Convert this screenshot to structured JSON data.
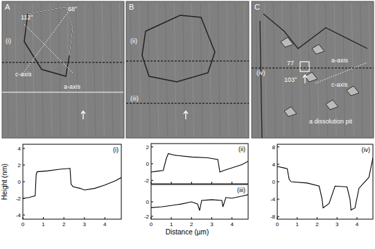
{
  "figure": {
    "y_label": "Height (nm)",
    "x_label": "Distance (µm)"
  },
  "images": [
    {
      "label": "A",
      "annotations": [
        "(i)",
        "112°",
        "68°",
        "c-axis",
        "a-axis"
      ]
    },
    {
      "label": "B",
      "annotations": [
        "(ii)",
        "(iii)"
      ]
    },
    {
      "label": "C",
      "annotations": [
        "a-axis",
        "77",
        "103°",
        "c-axis",
        "(iv)",
        "a dissolution pit"
      ]
    }
  ],
  "chart_data": [
    {
      "type": "line",
      "title": "(i)",
      "color": "#000000",
      "xlim": [
        0,
        4.8
      ],
      "xticks": [
        0,
        1,
        2,
        3,
        4
      ],
      "ylim": [
        -4.5,
        4.5
      ],
      "yticks": [
        -4,
        -2,
        0,
        2,
        4
      ],
      "x": [
        0,
        0.3,
        0.6,
        0.65,
        0.7,
        1.2,
        1.8,
        2.3,
        2.35,
        2.45,
        2.8,
        3.0,
        3.5,
        4.0,
        4.5,
        4.8
      ],
      "values": [
        -2,
        -1.9,
        -1.7,
        0.9,
        1.2,
        1.3,
        1.5,
        1.6,
        -0.3,
        -0.6,
        -0.8,
        -1,
        -0.8,
        -0.4,
        0.1,
        0.5
      ]
    },
    {
      "type": "line",
      "title": "(ii)",
      "color": "#000000",
      "tick_labels": "y",
      "xlim": [
        0,
        4.8
      ],
      "xticks": [
        0,
        1,
        2,
        3,
        4
      ],
      "ylim": [
        -2.4,
        2.4
      ],
      "yticks": [
        -2,
        0,
        2
      ],
      "x": [
        0,
        0.3,
        0.6,
        0.75,
        0.85,
        1.2,
        2.0,
        2.8,
        3.3,
        3.4,
        3.6,
        4.0,
        4.5,
        4.8
      ],
      "values": [
        -1,
        -0.9,
        -0.8,
        0.6,
        1.2,
        1.0,
        0.8,
        0.7,
        0.5,
        -1.0,
        -0.8,
        -0.5,
        -0.1,
        0.3
      ]
    },
    {
      "type": "line",
      "title": "(iii)",
      "color": "#000000",
      "xlim": [
        0,
        4.8
      ],
      "xticks": [
        0,
        1,
        2,
        3,
        4
      ],
      "ylim": [
        -2.4,
        2.4
      ],
      "yticks": [
        -2,
        0
      ],
      "x": [
        0,
        0.5,
        1,
        1.5,
        2,
        2.3,
        2.4,
        2.5,
        3,
        3.5,
        3.55,
        3.7,
        4,
        4.5,
        4.8
      ],
      "values": [
        -0.8,
        -0.7,
        -0.5,
        -0.3,
        0,
        -0.3,
        -1.2,
        0.2,
        0.3,
        0.2,
        -0.7,
        0.6,
        0.5,
        0.8,
        1
      ]
    },
    {
      "type": "line",
      "title": "(iv)",
      "color": "#000000",
      "xlim": [
        0,
        4.8
      ],
      "xticks": [
        0,
        1,
        2,
        3,
        4
      ],
      "ylim": [
        -8.6,
        8.6
      ],
      "yticks": [
        -8,
        -4,
        0,
        4,
        8
      ],
      "x": [
        0,
        0.3,
        0.5,
        0.6,
        0.7,
        1.5,
        2.1,
        2.25,
        2.3,
        2.6,
        2.9,
        3.5,
        3.65,
        3.7,
        3.9,
        4.1,
        4.6,
        4.8
      ],
      "values": [
        3.5,
        3.2,
        3,
        0.5,
        0,
        -0.3,
        -1,
        -4,
        -6,
        -5,
        -1,
        -1.2,
        -4,
        -6.5,
        -6,
        -1.5,
        1,
        5.5
      ]
    }
  ]
}
